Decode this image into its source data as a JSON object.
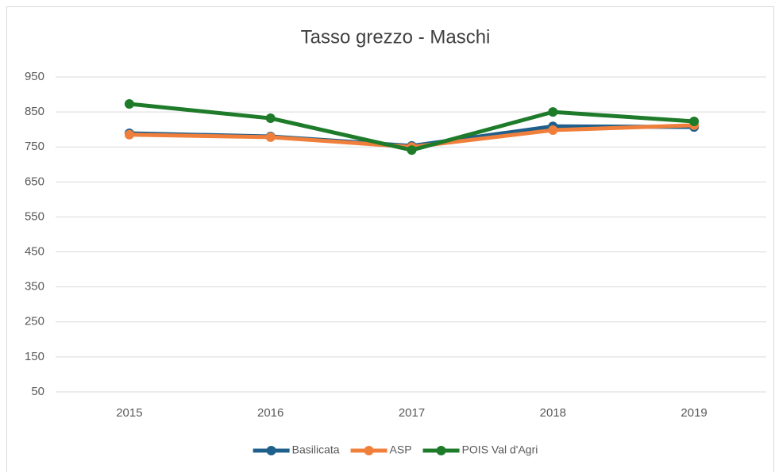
{
  "chart_data": {
    "type": "line",
    "title": "Tasso grezzo - Maschi",
    "categories": [
      "2015",
      "2016",
      "2017",
      "2018",
      "2019"
    ],
    "series": [
      {
        "name": "Basilicata",
        "color": "#1f5f8b",
        "values": [
          789,
          780,
          753,
          809,
          807
        ]
      },
      {
        "name": "ASP",
        "color": "#f07f3c",
        "values": [
          785,
          778,
          750,
          798,
          812
        ]
      },
      {
        "name": "POIS Val d'Agri",
        "color": "#1e7b2a",
        "values": [
          873,
          832,
          741,
          850,
          823
        ]
      }
    ],
    "ylim": [
      50,
      950
    ],
    "yticks": [
      50,
      150,
      250,
      350,
      450,
      550,
      650,
      750,
      850,
      950
    ],
    "grid": true,
    "legend": "bottom"
  }
}
